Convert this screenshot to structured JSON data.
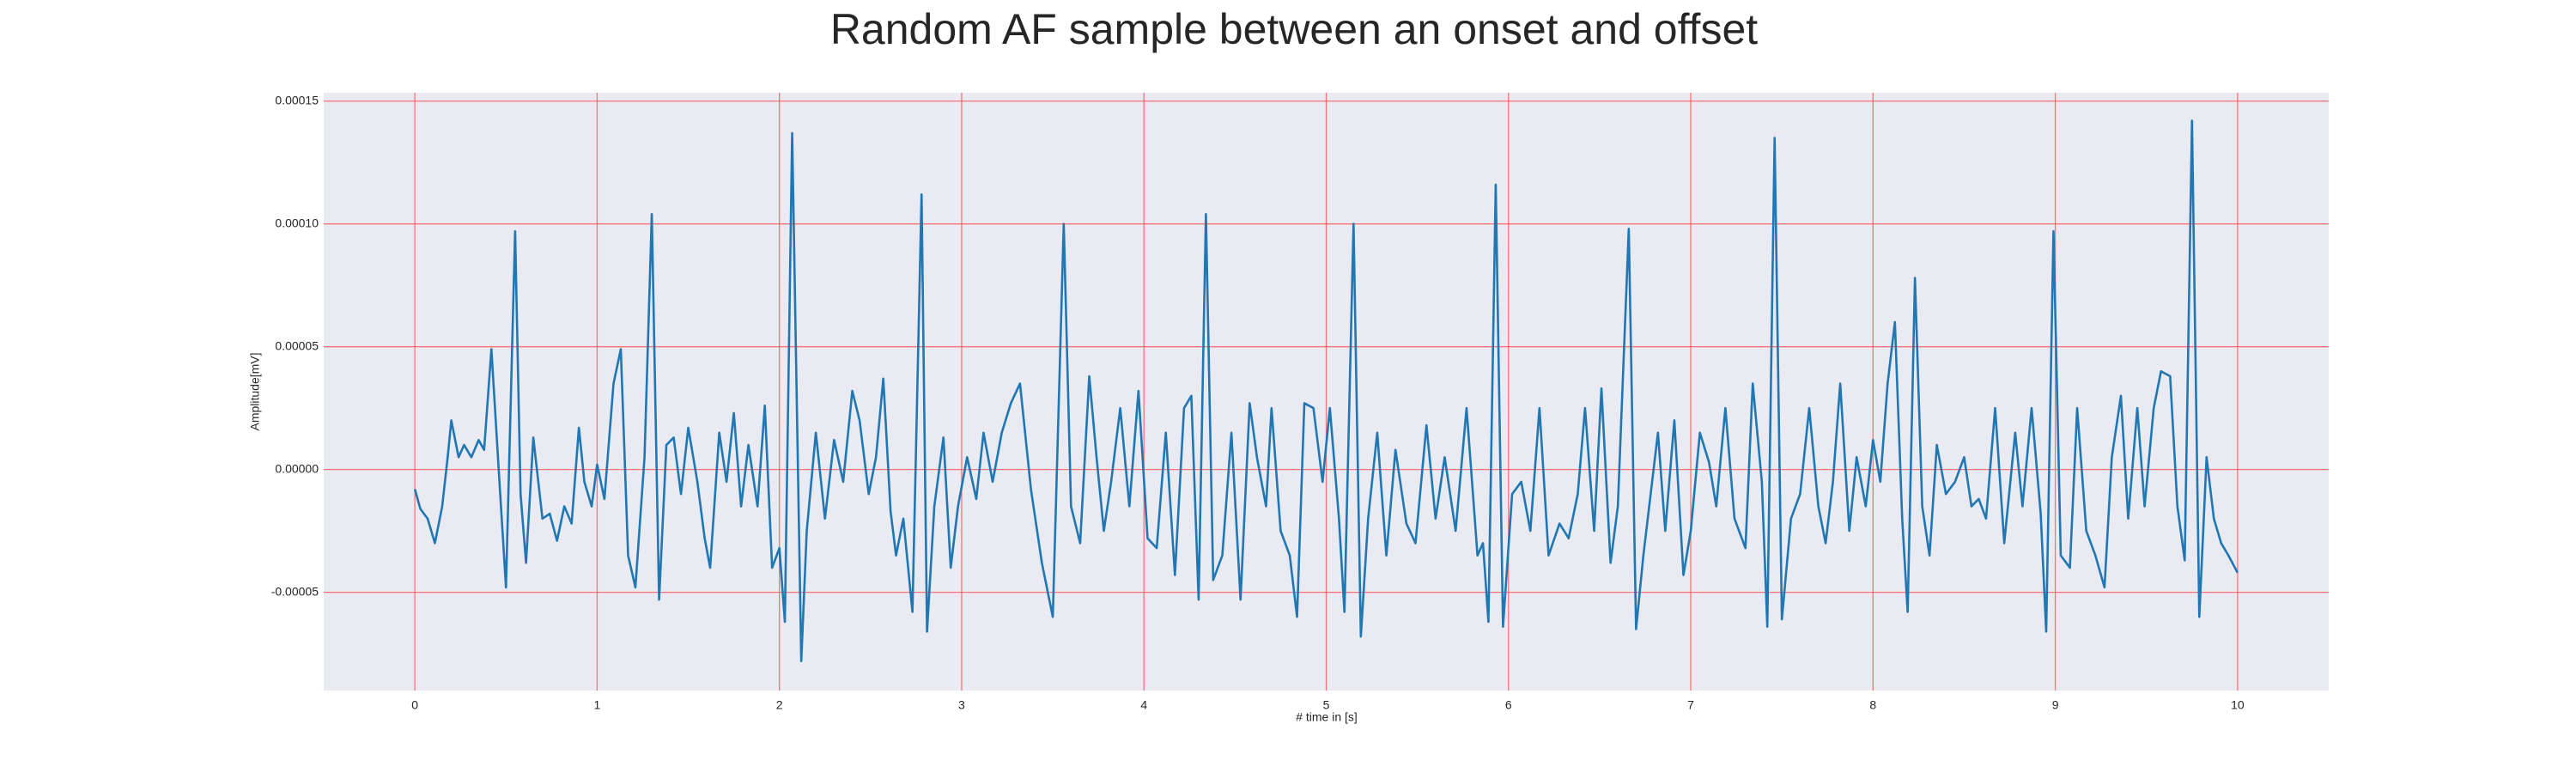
{
  "chart_data": {
    "type": "line",
    "title": "Random AF sample between an onset and offset",
    "xlabel": "# time in [s]",
    "ylabel": "Amplitude[mV]",
    "color": "#1f77b4",
    "grid": true,
    "grid_color": "#ff5555",
    "xlim": [
      -0.5,
      10.5
    ],
    "ylim": [
      -9e-05,
      0.0001534
    ],
    "xticks": [
      0,
      1,
      2,
      3,
      4,
      5,
      6,
      7,
      8,
      9,
      10
    ],
    "yticks": [
      {
        "value": -5e-05,
        "label": "-0.00005"
      },
      {
        "value": 0,
        "label": "0.00000"
      },
      {
        "value": 5e-05,
        "label": "0.00005"
      },
      {
        "value": 0.0001,
        "label": "0.00010"
      },
      {
        "value": 0.00015,
        "label": "0.00015"
      }
    ],
    "x": [
      0.0,
      0.03,
      0.07,
      0.11,
      0.15,
      0.18,
      0.2,
      0.24,
      0.27,
      0.31,
      0.35,
      0.38,
      0.42,
      0.46,
      0.5,
      0.55,
      0.58,
      0.61,
      0.65,
      0.7,
      0.74,
      0.78,
      0.82,
      0.86,
      0.9,
      0.93,
      0.97,
      1.0,
      1.04,
      1.09,
      1.13,
      1.17,
      1.21,
      1.26,
      1.3,
      1.34,
      1.38,
      1.42,
      1.46,
      1.5,
      1.55,
      1.59,
      1.62,
      1.67,
      1.71,
      1.75,
      1.79,
      1.83,
      1.88,
      1.92,
      1.96,
      2.0,
      2.03,
      2.07,
      2.12,
      2.15,
      2.2,
      2.25,
      2.3,
      2.35,
      2.4,
      2.44,
      2.49,
      2.53,
      2.57,
      2.61,
      2.64,
      2.68,
      2.73,
      2.78,
      2.81,
      2.85,
      2.9,
      2.94,
      2.98,
      3.03,
      3.08,
      3.12,
      3.17,
      3.22,
      3.27,
      3.32,
      3.38,
      3.44,
      3.5,
      3.56,
      3.6,
      3.65,
      3.7,
      3.74,
      3.78,
      3.82,
      3.87,
      3.92,
      3.97,
      4.02,
      4.07,
      4.12,
      4.17,
      4.22,
      4.26,
      4.3,
      4.34,
      4.38,
      4.43,
      4.48,
      4.53,
      4.58,
      4.62,
      4.67,
      4.7,
      4.75,
      4.8,
      4.84,
      4.88,
      4.93,
      4.98,
      5.02,
      5.07,
      5.1,
      5.15,
      5.19,
      5.23,
      5.28,
      5.33,
      5.38,
      5.44,
      5.49,
      5.55,
      5.6,
      5.65,
      5.71,
      5.77,
      5.83,
      5.86,
      5.89,
      5.93,
      5.97,
      6.02,
      6.07,
      6.12,
      6.17,
      6.22,
      6.28,
      6.33,
      6.38,
      6.42,
      6.47,
      6.51,
      6.56,
      6.6,
      6.66,
      6.7,
      6.74,
      6.78,
      6.82,
      6.86,
      6.91,
      6.96,
      7.0,
      7.05,
      7.1,
      7.14,
      7.19,
      7.24,
      7.3,
      7.34,
      7.39,
      7.42,
      7.46,
      7.5,
      7.55,
      7.6,
      7.65,
      7.7,
      7.74,
      7.78,
      7.82,
      7.87,
      7.91,
      7.96,
      8.0,
      8.04,
      8.08,
      8.12,
      8.16,
      8.19,
      8.23,
      8.27,
      8.31,
      8.35,
      8.4,
      8.45,
      8.5,
      8.54,
      8.58,
      8.62,
      8.67,
      8.72,
      8.78,
      8.82,
      8.87,
      8.92,
      8.95,
      8.99,
      9.03,
      9.08,
      9.12,
      9.17,
      9.22,
      9.27,
      9.31,
      9.36,
      9.4,
      9.45,
      9.49,
      9.54,
      9.58,
      9.63,
      9.67,
      9.71,
      9.75,
      9.79,
      9.83,
      9.87,
      9.91,
      9.95,
      10.0
    ],
    "values": [
      -8e-06,
      -1.6e-05,
      -2e-05,
      -3e-05,
      -1.5e-05,
      5e-06,
      2e-05,
      5e-06,
      1e-05,
      5e-06,
      1.2e-05,
      8e-06,
      4.9e-05,
      0.0,
      -4.8e-05,
      9.7e-05,
      -1e-05,
      -3.8e-05,
      1.3e-05,
      -2e-05,
      -1.8e-05,
      -2.9e-05,
      -1.5e-05,
      -2.2e-05,
      1.7e-05,
      -5e-06,
      -1.5e-05,
      2e-06,
      -1.2e-05,
      3.5e-05,
      4.9e-05,
      -3.5e-05,
      -4.8e-05,
      5e-06,
      0.000104,
      -5.3e-05,
      1e-05,
      1.3e-05,
      -1e-05,
      1.7e-05,
      -5e-06,
      -2.8e-05,
      -4e-05,
      1.5e-05,
      -5e-06,
      2.3e-05,
      -1.5e-05,
      1e-05,
      -1.5e-05,
      2.6e-05,
      -4e-05,
      -3.2e-05,
      -6.2e-05,
      0.000137,
      -7.8e-05,
      -2.5e-05,
      1.5e-05,
      -2e-05,
      1.2e-05,
      -5e-06,
      3.2e-05,
      2e-05,
      -1e-05,
      5e-06,
      3.7e-05,
      -1.7e-05,
      -3.5e-05,
      -2e-05,
      -5.8e-05,
      0.000112,
      -6.6e-05,
      -1.5e-05,
      1.3e-05,
      -4e-05,
      -1.5e-05,
      5e-06,
      -1.2e-05,
      1.5e-05,
      -5e-06,
      1.5e-05,
      2.7e-05,
      3.5e-05,
      -8e-06,
      -3.8e-05,
      -6e-05,
      0.0001,
      -1.5e-05,
      -3e-05,
      3.8e-05,
      5e-06,
      -2.5e-05,
      -5e-06,
      2.5e-05,
      -1.5e-05,
      3.2e-05,
      -2.8e-05,
      -3.2e-05,
      1.5e-05,
      -4.3e-05,
      2.5e-05,
      3e-05,
      -5.3e-05,
      0.000104,
      -4.5e-05,
      -3.5e-05,
      1.5e-05,
      -5.3e-05,
      2.7e-05,
      5e-06,
      -1.5e-05,
      2.5e-05,
      -2.5e-05,
      -3.5e-05,
      -6e-05,
      2.7e-05,
      2.5e-05,
      -5e-06,
      2.5e-05,
      -2e-05,
      -5.8e-05,
      0.0001,
      -6.8e-05,
      -2e-05,
      1.5e-05,
      -3.5e-05,
      8e-06,
      -2.2e-05,
      -3e-05,
      1.8e-05,
      -2e-05,
      5e-06,
      -2.5e-05,
      2.5e-05,
      -3.5e-05,
      -3e-05,
      -6.2e-05,
      0.000116,
      -6.4e-05,
      -1e-05,
      -5e-06,
      -2.5e-05,
      2.5e-05,
      -3.5e-05,
      -2.2e-05,
      -2.8e-05,
      -1e-05,
      2.5e-05,
      -2.5e-05,
      3.3e-05,
      -3.8e-05,
      -1.5e-05,
      9.8e-05,
      -6.5e-05,
      -3.5e-05,
      -1e-05,
      1.5e-05,
      -2.5e-05,
      2e-05,
      -4.3e-05,
      -2.5e-05,
      1.5e-05,
      3e-06,
      -1.5e-05,
      2.5e-05,
      -2e-05,
      -3.2e-05,
      3.5e-05,
      -5e-06,
      -6.4e-05,
      0.000135,
      -6.1e-05,
      -2e-05,
      -1e-05,
      2.5e-05,
      -1.5e-05,
      -3e-05,
      -5e-06,
      3.5e-05,
      -2.5e-05,
      5e-06,
      -1.5e-05,
      1.2e-05,
      -5e-06,
      3.5e-05,
      6e-05,
      -2e-05,
      -5.8e-05,
      7.8e-05,
      -1.5e-05,
      -3.5e-05,
      1e-05,
      -1e-05,
      -5e-06,
      5e-06,
      -1.5e-05,
      -1.2e-05,
      -2e-05,
      2.5e-05,
      -3e-05,
      1.5e-05,
      -1.5e-05,
      2.5e-05,
      -1.8e-05,
      -6.6e-05,
      9.7e-05,
      -3.5e-05,
      -4e-05,
      2.5e-05,
      -2.5e-05,
      -3.5e-05,
      -4.8e-05,
      5e-06,
      3e-05,
      -2e-05,
      2.5e-05,
      -1.5e-05,
      2.5e-05,
      4e-05,
      3.8e-05,
      -1.5e-05,
      -3.7e-05,
      0.000142,
      -6e-05,
      5e-06,
      -2e-05,
      -3e-05,
      -3.5e-05,
      -4.2e-05
    ]
  }
}
